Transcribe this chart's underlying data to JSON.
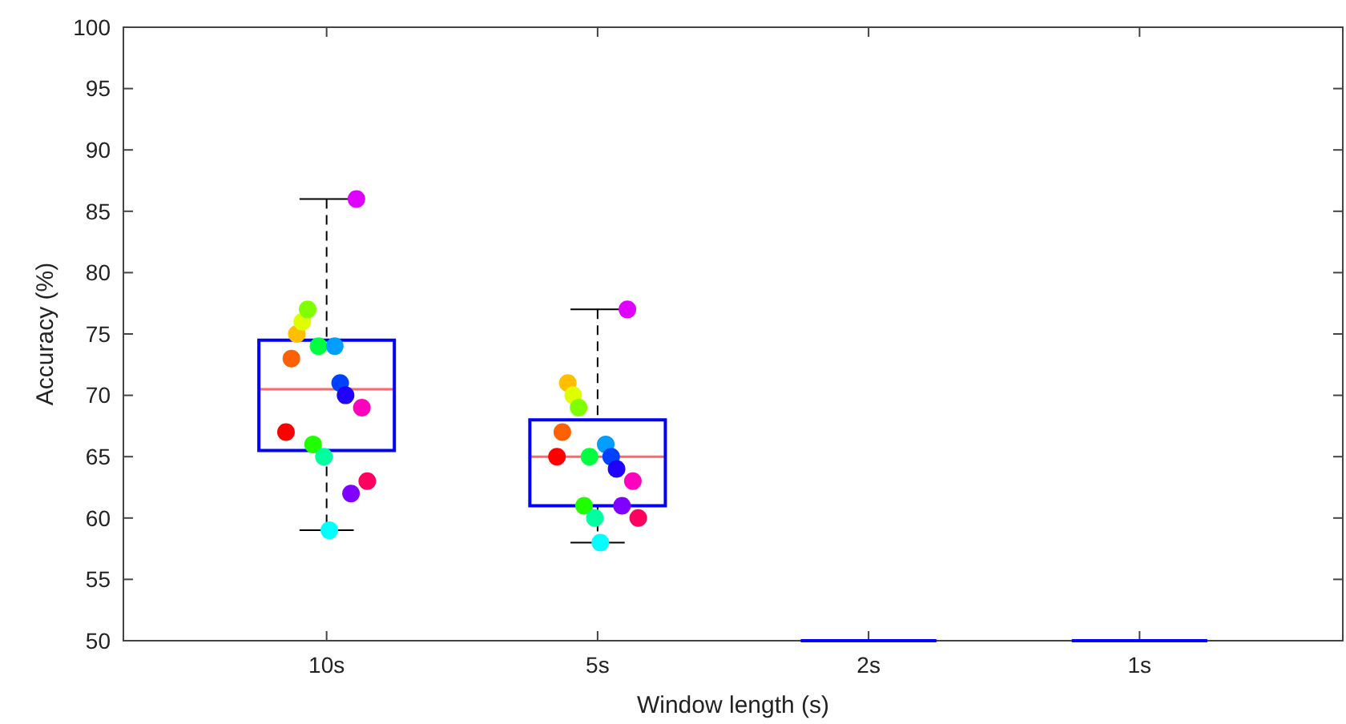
{
  "chart_data": {
    "type": "box",
    "xlabel": "Window length (s)",
    "ylabel": "Accuracy (%)",
    "categories": [
      "10s",
      "5s",
      "2s",
      "1s"
    ],
    "ylim": [
      50,
      100
    ],
    "yticks": [
      50,
      55,
      60,
      65,
      70,
      75,
      80,
      85,
      90,
      95,
      100
    ],
    "grid": false,
    "marker": "circle",
    "series": [
      {
        "color": "#0000ff",
        "boxes": [
          {
            "low": 59,
            "q1": 65.5,
            "median": 70.5,
            "q3": 74.5,
            "high": 86
          },
          {
            "low": 58,
            "q1": 61,
            "median": 65,
            "q3": 68,
            "high": 77
          },
          {
            "low": 50,
            "q1": 50,
            "median": 50,
            "q3": 50,
            "high": 50
          },
          {
            "low": 50,
            "q1": 50,
            "median": 50,
            "q3": 50,
            "high": 50
          }
        ]
      },
      {
        "type": "scatter",
        "color": "#ff0000",
        "values": [
          67,
          65,
          null,
          null
        ]
      },
      {
        "type": "scatter",
        "color": "#ff6000",
        "values": [
          73,
          67,
          null,
          null
        ]
      },
      {
        "type": "scatter",
        "color": "#ffbf00",
        "values": [
          75,
          71,
          null,
          null
        ]
      },
      {
        "type": "scatter",
        "color": "#dfff00",
        "values": [
          76,
          70,
          null,
          null
        ]
      },
      {
        "type": "scatter",
        "color": "#80ff00",
        "values": [
          77,
          69,
          null,
          null
        ]
      },
      {
        "type": "scatter",
        "color": "#20ff00",
        "values": [
          66,
          61,
          null,
          null
        ]
      },
      {
        "type": "scatter",
        "color": "#00ff40",
        "values": [
          74,
          65,
          null,
          null
        ]
      },
      {
        "type": "scatter",
        "color": "#00ff9f",
        "values": [
          65,
          60,
          null,
          null
        ]
      },
      {
        "type": "scatter",
        "color": "#00ffff",
        "values": [
          59,
          58,
          null,
          null
        ]
      },
      {
        "type": "scatter",
        "color": "#009fff",
        "values": [
          74,
          66,
          null,
          null
        ]
      },
      {
        "type": "scatter",
        "color": "#0040ff",
        "values": [
          71,
          65,
          null,
          null
        ]
      },
      {
        "type": "scatter",
        "color": "#2000ff",
        "values": [
          70,
          64,
          null,
          null
        ]
      },
      {
        "type": "scatter",
        "color": "#8000ff",
        "values": [
          62,
          61,
          null,
          null
        ]
      },
      {
        "type": "scatter",
        "color": "#df00ff",
        "values": [
          86,
          77,
          null,
          null
        ]
      },
      {
        "type": "scatter",
        "color": "#ff00bf",
        "values": [
          69,
          63,
          null,
          null
        ]
      },
      {
        "type": "scatter",
        "color": "#ff0060",
        "values": [
          63,
          60,
          null,
          null
        ]
      }
    ]
  }
}
